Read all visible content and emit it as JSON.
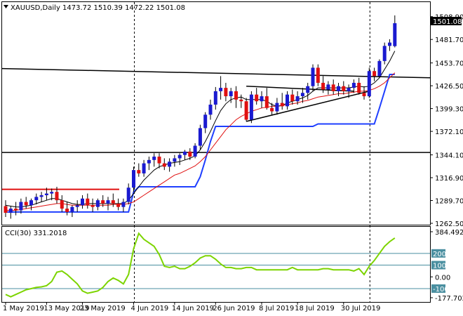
{
  "window": {
    "symbol": "XAUUSD,Daily",
    "ohlc": "1473.72 1510.39 1472.22 1501.08",
    "last_price_tag": "1501.08",
    "indicator_label": "CCI(30) 331.2018"
  },
  "colors": {
    "bull_candle": "#1a1ad0",
    "bear_candle": "#e01010",
    "wick": "#000000",
    "ma_fast": "#000000",
    "ma_slow": "#e01010",
    "channel": "#1f3fff",
    "cci_line": "#7cd400",
    "cci_levels": "#4a8fa0",
    "resistance": "#e01010",
    "trendline": "#000000"
  },
  "chart_data": [
    {
      "type": "candlestick",
      "ylim": [
        1262.5,
        1512
      ],
      "y_ticks": [
        "1508.90",
        "1481.70",
        "1453.70",
        "1426.50",
        "1399.30",
        "1372.10",
        "1344.10",
        "1316.90",
        "1289.70",
        "1262.50"
      ],
      "x_ticks": [
        "1 May 2019",
        "13 May 2019",
        "23 May 2019",
        "4 Jun 2019",
        "14 Jun 2019",
        "26 Jun 2019",
        "8 Jul 2019",
        "18 Jul 2019",
        "30 Jul 2019"
      ],
      "ohlc": [
        [
          1283,
          1290,
          1270,
          1275
        ],
        [
          1275,
          1283,
          1268,
          1280
        ],
        [
          1280,
          1288,
          1272,
          1278
        ],
        [
          1278,
          1292,
          1274,
          1288
        ],
        [
          1288,
          1294,
          1280,
          1284
        ],
        [
          1284,
          1292,
          1278,
          1290
        ],
        [
          1290,
          1298,
          1285,
          1294
        ],
        [
          1294,
          1300,
          1288,
          1296
        ],
        [
          1296,
          1305,
          1290,
          1298
        ],
        [
          1298,
          1304,
          1290,
          1300
        ],
        [
          1300,
          1306,
          1286,
          1290
        ],
        [
          1290,
          1296,
          1276,
          1280
        ],
        [
          1280,
          1288,
          1272,
          1276
        ],
        [
          1276,
          1284,
          1270,
          1282
        ],
        [
          1282,
          1290,
          1276,
          1284
        ],
        [
          1284,
          1296,
          1280,
          1292
        ],
        [
          1292,
          1298,
          1280,
          1284
        ],
        [
          1284,
          1292,
          1276,
          1282
        ],
        [
          1282,
          1292,
          1278,
          1290
        ],
        [
          1290,
          1296,
          1282,
          1286
        ],
        [
          1286,
          1294,
          1278,
          1290
        ],
        [
          1290,
          1298,
          1282,
          1286
        ],
        [
          1286,
          1292,
          1278,
          1282
        ],
        [
          1282,
          1292,
          1276,
          1288
        ],
        [
          1288,
          1310,
          1285,
          1305
        ],
        [
          1305,
          1330,
          1300,
          1326
        ],
        [
          1326,
          1334,
          1318,
          1322
        ],
        [
          1322,
          1338,
          1318,
          1334
        ],
        [
          1334,
          1342,
          1326,
          1338
        ],
        [
          1338,
          1346,
          1330,
          1342
        ],
        [
          1342,
          1346,
          1328,
          1334
        ],
        [
          1334,
          1340,
          1326,
          1330
        ],
        [
          1330,
          1340,
          1324,
          1336
        ],
        [
          1336,
          1344,
          1330,
          1340
        ],
        [
          1340,
          1346,
          1332,
          1344
        ],
        [
          1344,
          1350,
          1338,
          1348
        ],
        [
          1348,
          1352,
          1338,
          1342
        ],
        [
          1342,
          1358,
          1340,
          1355
        ],
        [
          1355,
          1380,
          1350,
          1376
        ],
        [
          1376,
          1395,
          1370,
          1392
        ],
        [
          1392,
          1410,
          1386,
          1404
        ],
        [
          1404,
          1425,
          1398,
          1420
        ],
        [
          1420,
          1438,
          1410,
          1424
        ],
        [
          1424,
          1430,
          1408,
          1414
        ],
        [
          1414,
          1424,
          1406,
          1420
        ],
        [
          1420,
          1426,
          1400,
          1410
        ],
        [
          1410,
          1416,
          1400,
          1408
        ],
        [
          1408,
          1412,
          1384,
          1386
        ],
        [
          1386,
          1420,
          1382,
          1416
        ],
        [
          1416,
          1424,
          1404,
          1408
        ],
        [
          1408,
          1420,
          1400,
          1414
        ],
        [
          1414,
          1424,
          1398,
          1400
        ],
        [
          1400,
          1406,
          1392,
          1396
        ],
        [
          1396,
          1412,
          1392,
          1406
        ],
        [
          1406,
          1418,
          1398,
          1402
        ],
        [
          1402,
          1420,
          1398,
          1416
        ],
        [
          1416,
          1422,
          1404,
          1408
        ],
        [
          1408,
          1420,
          1404,
          1414
        ],
        [
          1414,
          1424,
          1406,
          1418
        ],
        [
          1418,
          1430,
          1410,
          1426
        ],
        [
          1426,
          1452,
          1420,
          1448
        ],
        [
          1448,
          1452,
          1426,
          1430
        ],
        [
          1430,
          1438,
          1418,
          1422
        ],
        [
          1422,
          1432,
          1416,
          1428
        ],
        [
          1428,
          1434,
          1416,
          1420
        ],
        [
          1420,
          1430,
          1414,
          1426
        ],
        [
          1426,
          1432,
          1416,
          1420
        ],
        [
          1420,
          1428,
          1412,
          1424
        ],
        [
          1424,
          1434,
          1418,
          1430
        ],
        [
          1430,
          1436,
          1416,
          1418
        ],
        [
          1418,
          1426,
          1410,
          1414
        ],
        [
          1414,
          1448,
          1412,
          1444
        ],
        [
          1444,
          1448,
          1432,
          1438
        ],
        [
          1438,
          1458,
          1436,
          1456
        ],
        [
          1456,
          1478,
          1452,
          1474
        ],
        [
          1474,
          1482,
          1468,
          1478
        ],
        [
          1473.72,
          1510.39,
          1472.22,
          1501.08
        ]
      ],
      "ma_fast": [
        1284,
        1283,
        1282,
        1282,
        1283,
        1284,
        1286,
        1288,
        1290,
        1292,
        1292,
        1290,
        1288,
        1286,
        1285,
        1285,
        1286,
        1286,
        1286,
        1286,
        1286,
        1286,
        1286,
        1286,
        1290,
        1298,
        1306,
        1314,
        1320,
        1326,
        1330,
        1332,
        1334,
        1335,
        1336,
        1338,
        1340,
        1343,
        1350,
        1360,
        1372,
        1385,
        1397,
        1405,
        1410,
        1412,
        1413,
        1410,
        1410,
        1410,
        1410,
        1408,
        1404,
        1402,
        1403,
        1406,
        1408,
        1410,
        1412,
        1415,
        1420,
        1424,
        1424,
        1424,
        1424,
        1424,
        1424,
        1424,
        1425,
        1426,
        1425,
        1426,
        1430,
        1436,
        1446,
        1456,
        1468
      ],
      "ma_slow": [
        1278,
        1278,
        1278,
        1279,
        1280,
        1281,
        1282,
        1283,
        1284,
        1285,
        1286,
        1286,
        1285,
        1284,
        1284,
        1284,
        1284,
        1284,
        1284,
        1284,
        1284,
        1285,
        1285,
        1285,
        1286,
        1288,
        1292,
        1296,
        1300,
        1304,
        1308,
        1312,
        1316,
        1320,
        1322,
        1325,
        1328,
        1331,
        1336,
        1342,
        1350,
        1358,
        1366,
        1374,
        1380,
        1386,
        1390,
        1393,
        1396,
        1398,
        1400,
        1401,
        1402,
        1402,
        1403,
        1404,
        1405,
        1406,
        1408,
        1409,
        1411,
        1413,
        1414,
        1415,
        1416,
        1417,
        1417,
        1418,
        1419,
        1420,
        1420,
        1421,
        1423,
        1426,
        1430,
        1436,
        1442
      ],
      "channel_low": [
        1276,
        1276,
        1276,
        1276,
        1276,
        1276,
        1276,
        1276,
        1276,
        1276,
        1276,
        1276,
        1276,
        1276,
        1276,
        1276,
        1276,
        1276,
        1276,
        1276,
        1276,
        1276,
        1276,
        1276,
        1276,
        1300,
        1306,
        1306,
        1306,
        1306,
        1306,
        1306,
        1306,
        1306,
        1306,
        1306,
        1306,
        1306,
        1318,
        1338,
        1360,
        1378,
        1378,
        1378,
        1378,
        1378,
        1378,
        1378,
        1378,
        1378,
        1378,
        1378,
        1378,
        1378,
        1378,
        1378,
        1378,
        1378,
        1378,
        1378,
        1378,
        1381,
        1381,
        1381,
        1381,
        1381,
        1381,
        1381,
        1381,
        1381,
        1381,
        1381,
        1381,
        1400,
        1420,
        1440,
        1440
      ],
      "resistance_level": 1303,
      "support_level": 1347,
      "long_trend": [
        [
          0,
          1447
        ],
        [
          76,
          1436
        ]
      ],
      "triangle_upper": [
        [
          47,
          1426
        ],
        [
          68,
          1420
        ]
      ],
      "triangle_lower": [
        [
          47,
          1384
        ],
        [
          71,
          1420
        ]
      ]
    },
    {
      "type": "line",
      "name": "CCI(30) 331.2018",
      "ylim": [
        -178,
        384.4925
      ],
      "y_ticks": [
        "384.4925",
        "200",
        "100",
        "0.00",
        "-100",
        "-177.702"
      ],
      "levels": [
        200,
        100,
        -100
      ],
      "values": [
        -150,
        -170,
        -150,
        -130,
        -110,
        -100,
        -90,
        -85,
        -75,
        -40,
        40,
        50,
        20,
        -20,
        -60,
        -120,
        -140,
        -130,
        -120,
        -90,
        -40,
        -10,
        -30,
        -60,
        20,
        240,
        370,
        320,
        290,
        260,
        190,
        90,
        80,
        90,
        70,
        70,
        90,
        120,
        160,
        180,
        180,
        150,
        110,
        80,
        80,
        70,
        70,
        80,
        80,
        60,
        60,
        60,
        60,
        60,
        60,
        60,
        80,
        60,
        60,
        60,
        60,
        60,
        70,
        70,
        60,
        60,
        60,
        60,
        50,
        70,
        20,
        90,
        140,
        200,
        260,
        300,
        331
      ]
    }
  ]
}
